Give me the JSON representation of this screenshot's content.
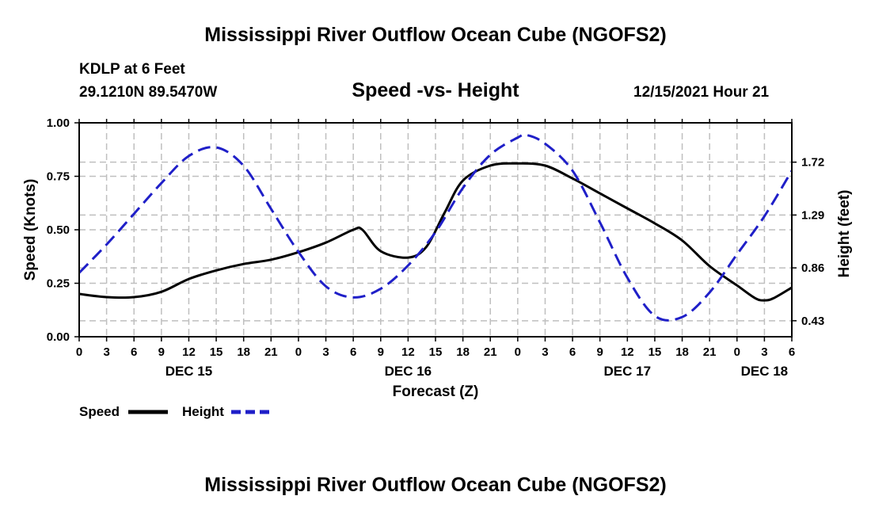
{
  "header": {
    "title": "Mississippi River Outflow Ocean Cube (NGOFS2)",
    "station": "KDLP at 6 Feet",
    "coords": "29.1210N  89.5470W",
    "subtitle": "Speed -vs- Height",
    "datetime": "12/15/2021 Hour 21"
  },
  "footer": {
    "title": "Mississippi River Outflow Ocean Cube (NGOFS2)"
  },
  "colors": {
    "speed": "#000000",
    "height": "#1f1fc8",
    "grid": "#bfbfbf"
  },
  "chart_data": {
    "type": "line",
    "title": "Speed -vs- Height",
    "xlabel": "Forecast (Z)",
    "ylabel": "Speed (Knots)",
    "ylabel_right": "Height (feet)",
    "x_hours_range": [
      0,
      78
    ],
    "xticks": [
      {
        "h": 0,
        "label": "0"
      },
      {
        "h": 3,
        "label": "3"
      },
      {
        "h": 6,
        "label": "6"
      },
      {
        "h": 9,
        "label": "9"
      },
      {
        "h": 12,
        "label": "12"
      },
      {
        "h": 15,
        "label": "15"
      },
      {
        "h": 18,
        "label": "18"
      },
      {
        "h": 21,
        "label": "21"
      },
      {
        "h": 24,
        "label": "0"
      },
      {
        "h": 27,
        "label": "3"
      },
      {
        "h": 30,
        "label": "6"
      },
      {
        "h": 33,
        "label": "9"
      },
      {
        "h": 36,
        "label": "12"
      },
      {
        "h": 39,
        "label": "15"
      },
      {
        "h": 42,
        "label": "18"
      },
      {
        "h": 45,
        "label": "21"
      },
      {
        "h": 48,
        "label": "0"
      },
      {
        "h": 51,
        "label": "3"
      },
      {
        "h": 54,
        "label": "6"
      },
      {
        "h": 57,
        "label": "9"
      },
      {
        "h": 60,
        "label": "12"
      },
      {
        "h": 63,
        "label": "15"
      },
      {
        "h": 66,
        "label": "18"
      },
      {
        "h": 69,
        "label": "21"
      },
      {
        "h": 72,
        "label": "0"
      },
      {
        "h": 75,
        "label": "3"
      },
      {
        "h": 78,
        "label": "6"
      }
    ],
    "date_labels": [
      {
        "h": 12,
        "label": "DEC 15"
      },
      {
        "h": 36,
        "label": "DEC 16"
      },
      {
        "h": 60,
        "label": "DEC 17"
      },
      {
        "h": 75,
        "label": "DEC 18"
      }
    ],
    "ylim_left": [
      0,
      1
    ],
    "yticks_left": [
      {
        "v": 0,
        "label": "0.00"
      },
      {
        "v": 0.25,
        "label": "0.25"
      },
      {
        "v": 0.5,
        "label": "0.50"
      },
      {
        "v": 0.75,
        "label": "0.75"
      },
      {
        "v": 1,
        "label": "1.00"
      }
    ],
    "ylim_right": [
      0.3,
      2.04
    ],
    "yticks_right": [
      {
        "v": 0.43,
        "label": "0.43"
      },
      {
        "v": 0.86,
        "label": "0.86"
      },
      {
        "v": 1.29,
        "label": "1.29"
      },
      {
        "v": 1.72,
        "label": "1.72"
      }
    ],
    "series": [
      {
        "name": "Speed",
        "axis": "left",
        "style": "solid",
        "x": [
          0,
          3,
          6,
          9,
          12,
          15,
          18,
          21,
          24,
          27,
          30,
          31,
          33,
          36,
          38,
          40,
          42,
          45,
          48,
          51,
          54,
          57,
          60,
          63,
          66,
          69,
          72,
          74,
          75,
          76,
          78
        ],
        "y": [
          0.2,
          0.185,
          0.185,
          0.21,
          0.27,
          0.31,
          0.34,
          0.36,
          0.395,
          0.44,
          0.5,
          0.5,
          0.4,
          0.37,
          0.42,
          0.58,
          0.73,
          0.8,
          0.81,
          0.8,
          0.74,
          0.67,
          0.6,
          0.53,
          0.45,
          0.33,
          0.24,
          0.18,
          0.17,
          0.18,
          0.23
        ]
      },
      {
        "name": "Height",
        "axis": "right",
        "style": "dashed",
        "x": [
          0,
          3,
          6,
          9,
          12,
          15,
          18,
          21,
          24,
          27,
          30,
          33,
          36,
          39,
          42,
          45,
          48,
          49,
          51,
          54,
          57,
          60,
          63,
          66,
          69,
          72,
          75,
          78
        ],
        "y": [
          0.82,
          1.05,
          1.3,
          1.55,
          1.77,
          1.84,
          1.69,
          1.34,
          0.99,
          0.71,
          0.62,
          0.69,
          0.88,
          1.15,
          1.51,
          1.78,
          1.92,
          1.94,
          1.87,
          1.65,
          1.23,
          0.78,
          0.47,
          0.46,
          0.66,
          0.97,
          1.28,
          1.65
        ]
      }
    ],
    "legend": [
      {
        "name": "Speed",
        "label": "Speed"
      },
      {
        "name": "Height",
        "label": "Height"
      }
    ],
    "legend_position": "bottom-left",
    "grid": true
  }
}
